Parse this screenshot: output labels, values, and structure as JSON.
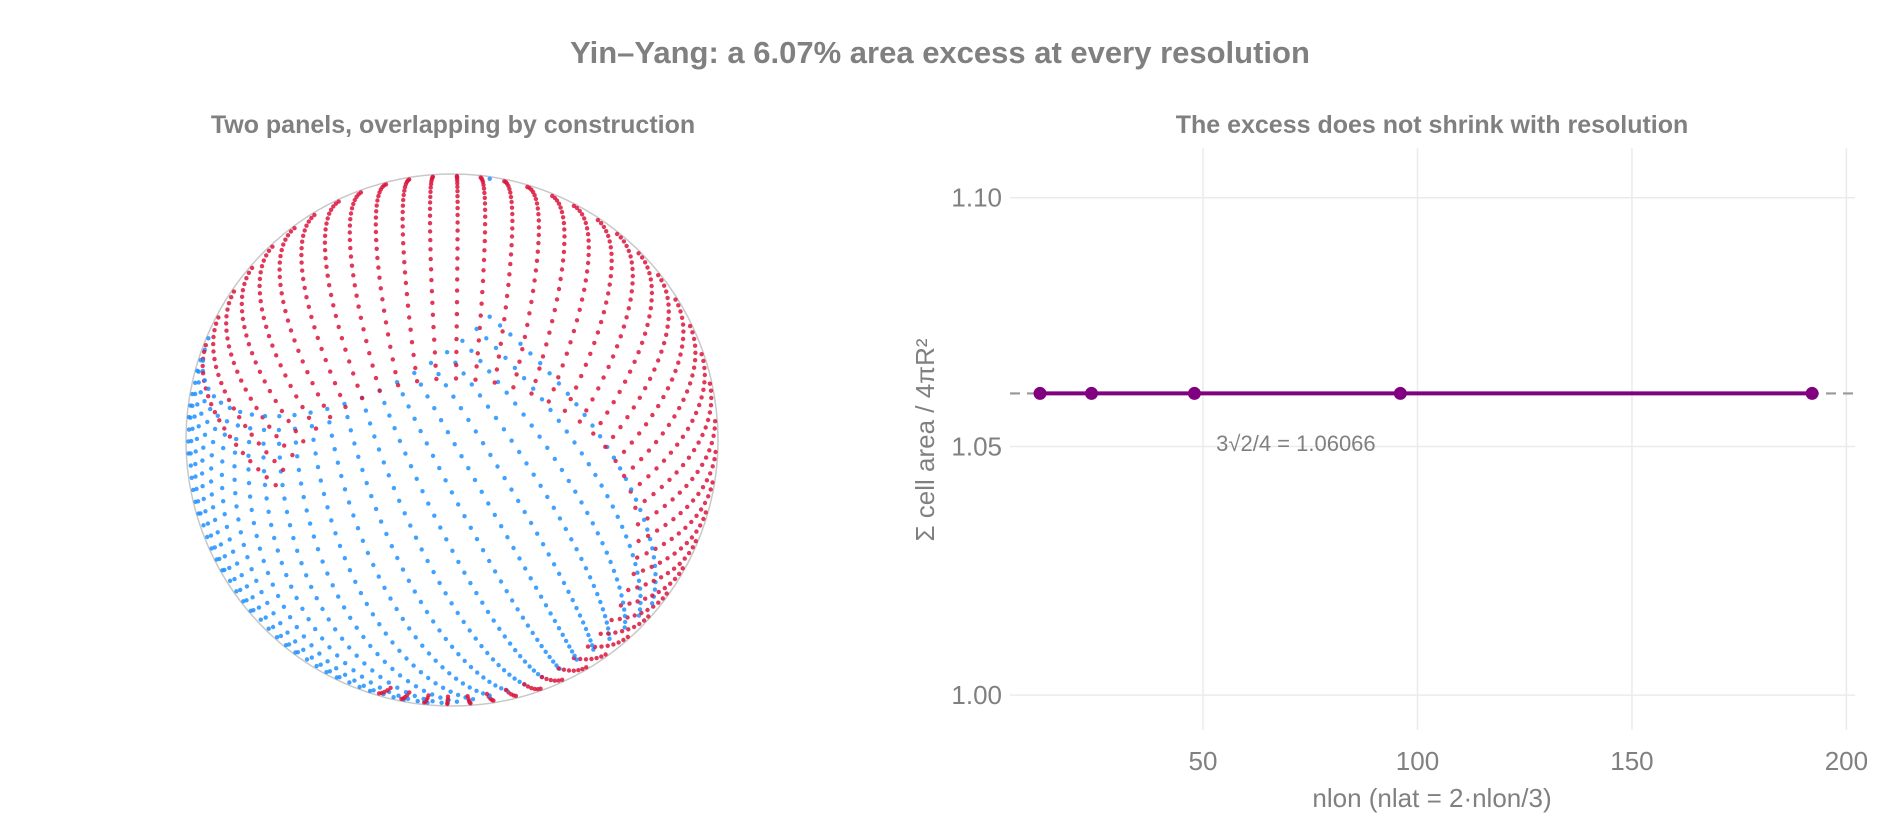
{
  "title": "Yin–Yang: a 6.07% area excess at every resolution",
  "colors": {
    "yin": "#dc143c",
    "yang": "#1e90ff",
    "line": "#800080",
    "text": "#808080",
    "grid": "#ebebeb"
  },
  "chart_data": [
    {
      "type": "scatter",
      "title": "Two panels, overlapping by construction",
      "series": [
        {
          "name": "",
          "color": "#dc143c",
          "role": "yin panel grid points"
        },
        {
          "name": "",
          "color": "#1e90ff",
          "role": "yang panel grid points"
        }
      ]
    },
    {
      "type": "line",
      "title": "The excess does not shrink with resolution",
      "xlabel": "nlon  (nlat = 2·nlon/3)",
      "ylabel": "Σ cell area / 4πR²",
      "xlim": [
        5,
        202
      ],
      "ylim": [
        0.993,
        1.11
      ],
      "xticks": [
        {
          "value": 50,
          "label": "50"
        },
        {
          "value": 100,
          "label": "100"
        },
        {
          "value": 150,
          "label": "150"
        },
        {
          "value": 200,
          "label": "200"
        }
      ],
      "yticks": [
        {
          "value": 1.0,
          "label": "1.00"
        },
        {
          "value": 1.05,
          "label": "1.05"
        },
        {
          "value": 1.1,
          "label": "1.10"
        }
      ],
      "grid": true,
      "x": [
        12,
        24,
        48,
        96,
        192
      ],
      "series": [
        {
          "name": "",
          "values": [
            1.06066,
            1.06066,
            1.06066,
            1.06066,
            1.06066
          ]
        }
      ],
      "reference_line": {
        "value": 1.06066,
        "style": "dashed"
      },
      "annotation": {
        "text": "3√2/4 = 1.06066",
        "x": 60,
        "y": 1.0515
      }
    }
  ]
}
